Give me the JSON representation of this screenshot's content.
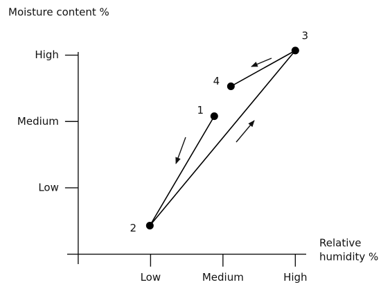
{
  "chart_data": {
    "type": "line",
    "y_label": "Moisture content %",
    "x_label": [
      "Relative",
      "humidity %"
    ],
    "x": [
      1.88,
      0.99,
      3.0,
      2.11
    ],
    "series": [
      {
        "color": "#000000",
        "values": [
          2.08,
          0.43,
          3.07,
          2.53
        ],
        "point_labels": [
          "1",
          "2",
          "3",
          "4"
        ]
      }
    ],
    "xlim": [
      -0.2,
      3.15
    ],
    "ylim": [
      -0.15,
      3.1
    ],
    "xticks": [
      {
        "value": 1,
        "label": "Low"
      },
      {
        "value": 2,
        "label": "Medium"
      },
      {
        "value": 3,
        "label": "High"
      }
    ],
    "yticks": [
      {
        "value": 1,
        "label": "Low"
      },
      {
        "value": 2,
        "label": "Medium"
      },
      {
        "value": 3,
        "label": "High"
      }
    ]
  }
}
